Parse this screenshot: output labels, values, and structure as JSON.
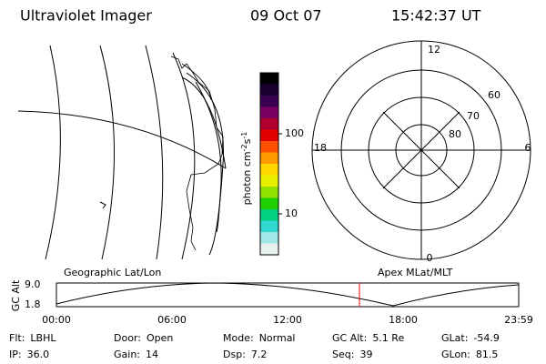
{
  "header": {
    "title": "Ultraviolet Imager",
    "date": "09 Oct 07",
    "time": "15:42:37 UT"
  },
  "colorbar": {
    "unit": [
      "photon cm",
      "-2",
      "s",
      "-1"
    ],
    "ticks": [
      "100",
      "10"
    ]
  },
  "polar": {
    "mlt_labels": [
      "12",
      "18",
      "6",
      "0"
    ],
    "lat_labels": [
      "60",
      "70",
      "80"
    ]
  },
  "timeline": {
    "left_title": "Geographic Lat/Lon",
    "right_title": "Apex MLat/MLT",
    "y_label": "GC Alt",
    "y_ticks": [
      "9.0",
      "1.8"
    ],
    "x_ticks": [
      "00:00",
      "06:00",
      "12:00",
      "18:00",
      "23:59"
    ]
  },
  "status": {
    "rows": [
      [
        {
          "label": "Flt:",
          "value": "LBHL"
        },
        {
          "label": "Door:",
          "value": "Open"
        },
        {
          "label": "Mode:",
          "value": "Normal"
        },
        {
          "label": "GC Alt:",
          "value": "5.1 Re"
        },
        {
          "label": "GLat:",
          "value": "-54.9"
        }
      ],
      [
        {
          "label": "IP:",
          "value": "36.0"
        },
        {
          "label": "Gain:",
          "value": "14"
        },
        {
          "label": "Dsp:",
          "value": "7.2"
        },
        {
          "label": "Seq:",
          "value": "39"
        },
        {
          "label": "GLon:",
          "value": "81.5"
        }
      ]
    ]
  }
}
